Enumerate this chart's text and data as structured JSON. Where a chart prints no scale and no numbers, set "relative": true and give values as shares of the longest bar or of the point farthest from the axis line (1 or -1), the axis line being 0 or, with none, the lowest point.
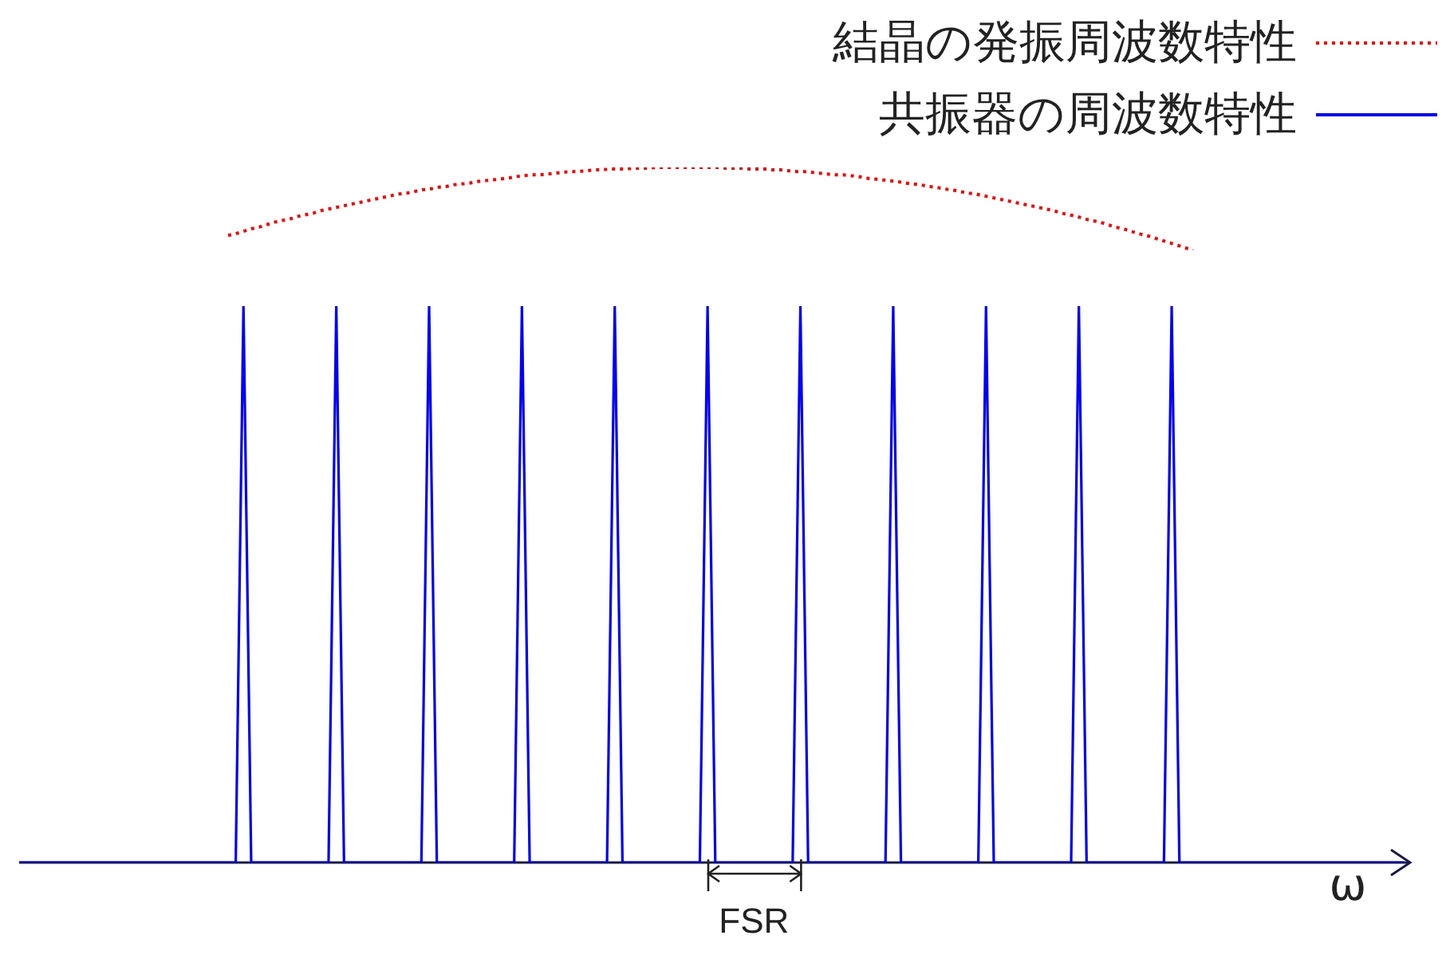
{
  "chart_data": [
    {
      "type": "line",
      "relative": true,
      "legend": "top right",
      "marker": "none",
      "categories": [
        null,
        null,
        null,
        null,
        null,
        null,
        null,
        null,
        null,
        null,
        null,
        null,
        null,
        null,
        null,
        null,
        null,
        null,
        null,
        null,
        null,
        null,
        null,
        null,
        null,
        null,
        null,
        null,
        null,
        null,
        null,
        null,
        null,
        null,
        null,
        null,
        null,
        null,
        null,
        null,
        null,
        null,
        null,
        null,
        null,
        null,
        null,
        null,
        null,
        null,
        null,
        null,
        null,
        null,
        null,
        null,
        null,
        null,
        null,
        null,
        null,
        null,
        null,
        null,
        null,
        null,
        null,
        null,
        null,
        null,
        null,
        null,
        null,
        null,
        null,
        null,
        null,
        null,
        null,
        null,
        null,
        null,
        null,
        null,
        null,
        null,
        null,
        null,
        null,
        null,
        null,
        null,
        null,
        null,
        null,
        null,
        null,
        null,
        null,
        null,
        null,
        null,
        null,
        null,
        null,
        null,
        null,
        null,
        null,
        null,
        null,
        null,
        null,
        null,
        null,
        null,
        null,
        null,
        null,
        null,
        null,
        null,
        null,
        null,
        null
      ],
      "series": [
        {
          "name": "結晶の発振周波数特性",
          "color": "#ff0000",
          "line_style": "dotted",
          "values": [
            0.18,
            0.2,
            0.23,
            0.26,
            0.28,
            0.31,
            0.34,
            0.36,
            0.38,
            0.41,
            0.43,
            0.45,
            0.48,
            0.5,
            0.52,
            0.54,
            0.56,
            0.58,
            0.6,
            0.62,
            0.64,
            0.66,
            0.68,
            0.69,
            0.71,
            0.73,
            0.74,
            0.76,
            0.77,
            0.79,
            0.8,
            0.81,
            0.83,
            0.84,
            0.85,
            0.86,
            0.87,
            0.89,
            0.9,
            0.91,
            0.91,
            0.92,
            0.93,
            0.94,
            0.95,
            0.95,
            0.96,
            0.97,
            0.97,
            0.98,
            0.98,
            0.98,
            0.99,
            0.99,
            0.99,
            1,
            1,
            1,
            1,
            1,
            1,
            1,
            1,
            1,
            0.99,
            0.99,
            0.99,
            0.98,
            0.98,
            0.98,
            0.97,
            0.97,
            0.96,
            0.95,
            0.95,
            0.94,
            0.93,
            0.92,
            0.91,
            0.91,
            0.9,
            0.89,
            0.87,
            0.86,
            0.85,
            0.84,
            0.83,
            0.81,
            0.8,
            0.79,
            0.77,
            0.76,
            0.74,
            0.73,
            0.71,
            0.69,
            0.68,
            0.66,
            0.64,
            0.62,
            0.6,
            0.58,
            0.56,
            0.54,
            0.52,
            0.5,
            0.48,
            0.45,
            0.43,
            0.41,
            0.38,
            0.36,
            0.34,
            0.31,
            0.28,
            0.26,
            0.23,
            0.2,
            0.18,
            0.15,
            0.12,
            0.09,
            0.06,
            0.03,
            0
          ]
        }
      ]
    },
    {
      "type": "line",
      "relative": true,
      "xlabel": "ω",
      "legend": "top right",
      "marker": "none",
      "annotations": [
        "FSR"
      ],
      "categories": [
        null,
        null,
        null,
        null,
        null,
        null,
        null,
        null,
        null,
        null,
        null,
        null,
        null,
        null,
        null,
        null,
        null,
        null,
        null,
        null,
        null,
        null,
        null,
        null,
        null,
        null,
        null,
        null,
        null,
        null,
        null,
        null,
        null,
        null,
        null,
        null,
        null,
        null,
        null,
        null,
        null,
        null,
        null,
        null,
        null,
        null,
        null,
        null,
        null,
        null,
        null,
        null,
        null,
        null,
        null,
        null,
        null,
        null,
        null,
        null,
        null,
        null,
        null,
        null,
        null,
        null,
        null,
        null,
        null,
        null,
        null,
        null,
        null,
        null,
        null,
        null,
        null,
        null,
        null,
        null,
        null,
        null,
        null,
        null,
        null,
        null,
        null,
        null,
        null,
        null,
        null,
        null,
        null,
        null,
        null,
        null,
        null,
        null,
        null,
        null,
        null,
        null,
        null,
        null,
        null,
        null,
        null,
        null,
        null,
        null,
        null,
        null,
        null,
        null,
        null,
        null,
        null,
        null,
        null,
        null,
        null,
        null,
        null,
        null,
        null,
        null,
        null,
        null,
        null,
        null,
        null,
        null,
        null,
        null,
        null,
        null,
        null,
        null,
        null,
        null,
        null,
        null,
        null,
        null,
        null,
        null,
        null,
        null,
        null,
        null,
        null,
        null,
        null,
        null,
        null,
        null,
        null,
        null,
        null,
        null,
        null,
        null,
        null,
        null,
        null,
        null,
        null,
        null,
        null,
        null,
        null,
        null,
        null,
        null,
        null,
        null,
        null,
        null,
        null,
        null
      ],
      "series": [
        {
          "name": "共振器の周波数特性",
          "color": "#0000ff",
          "line_style": "solid",
          "values": [
            0,
            0,
            0,
            0,
            0,
            0,
            0,
            0,
            0,
            0,
            0,
            0,
            0,
            0,
            0,
            0,
            0,
            0,
            0,
            0,
            0,
            0,
            0,
            0,
            0,
            0,
            0,
            0,
            0,
            1,
            0,
            0,
            0,
            0,
            0,
            0,
            0,
            0,
            0,
            0,
            0,
            1,
            0,
            0,
            0,
            0,
            0,
            0,
            0,
            0,
            0,
            0,
            0,
            1,
            0,
            0,
            0,
            0,
            0,
            0,
            0,
            0,
            0,
            0,
            0,
            1,
            0,
            0,
            0,
            0,
            0,
            0,
            0,
            0,
            0,
            0,
            0,
            1,
            0,
            0,
            0,
            0,
            0,
            0,
            0,
            0,
            0,
            0,
            0,
            1,
            0,
            0,
            0,
            0,
            0,
            0,
            0,
            0,
            0,
            0,
            0,
            1,
            0,
            0,
            0,
            0,
            0,
            0,
            0,
            0,
            0,
            0,
            0,
            1,
            0,
            0,
            0,
            0,
            0,
            0,
            0,
            0,
            0,
            0,
            0,
            1,
            0,
            0,
            0,
            0,
            0,
            0,
            0,
            0,
            0,
            0,
            0,
            1,
            0,
            0,
            0,
            0,
            0,
            0,
            0,
            0,
            0,
            0,
            0,
            1,
            0,
            0,
            0,
            0,
            0,
            0,
            0,
            0,
            0,
            0,
            0,
            0,
            0,
            0,
            0,
            0,
            0,
            0,
            0,
            0,
            0,
            0,
            0,
            0,
            0,
            0,
            0,
            0,
            0,
            0
          ]
        }
      ]
    }
  ]
}
